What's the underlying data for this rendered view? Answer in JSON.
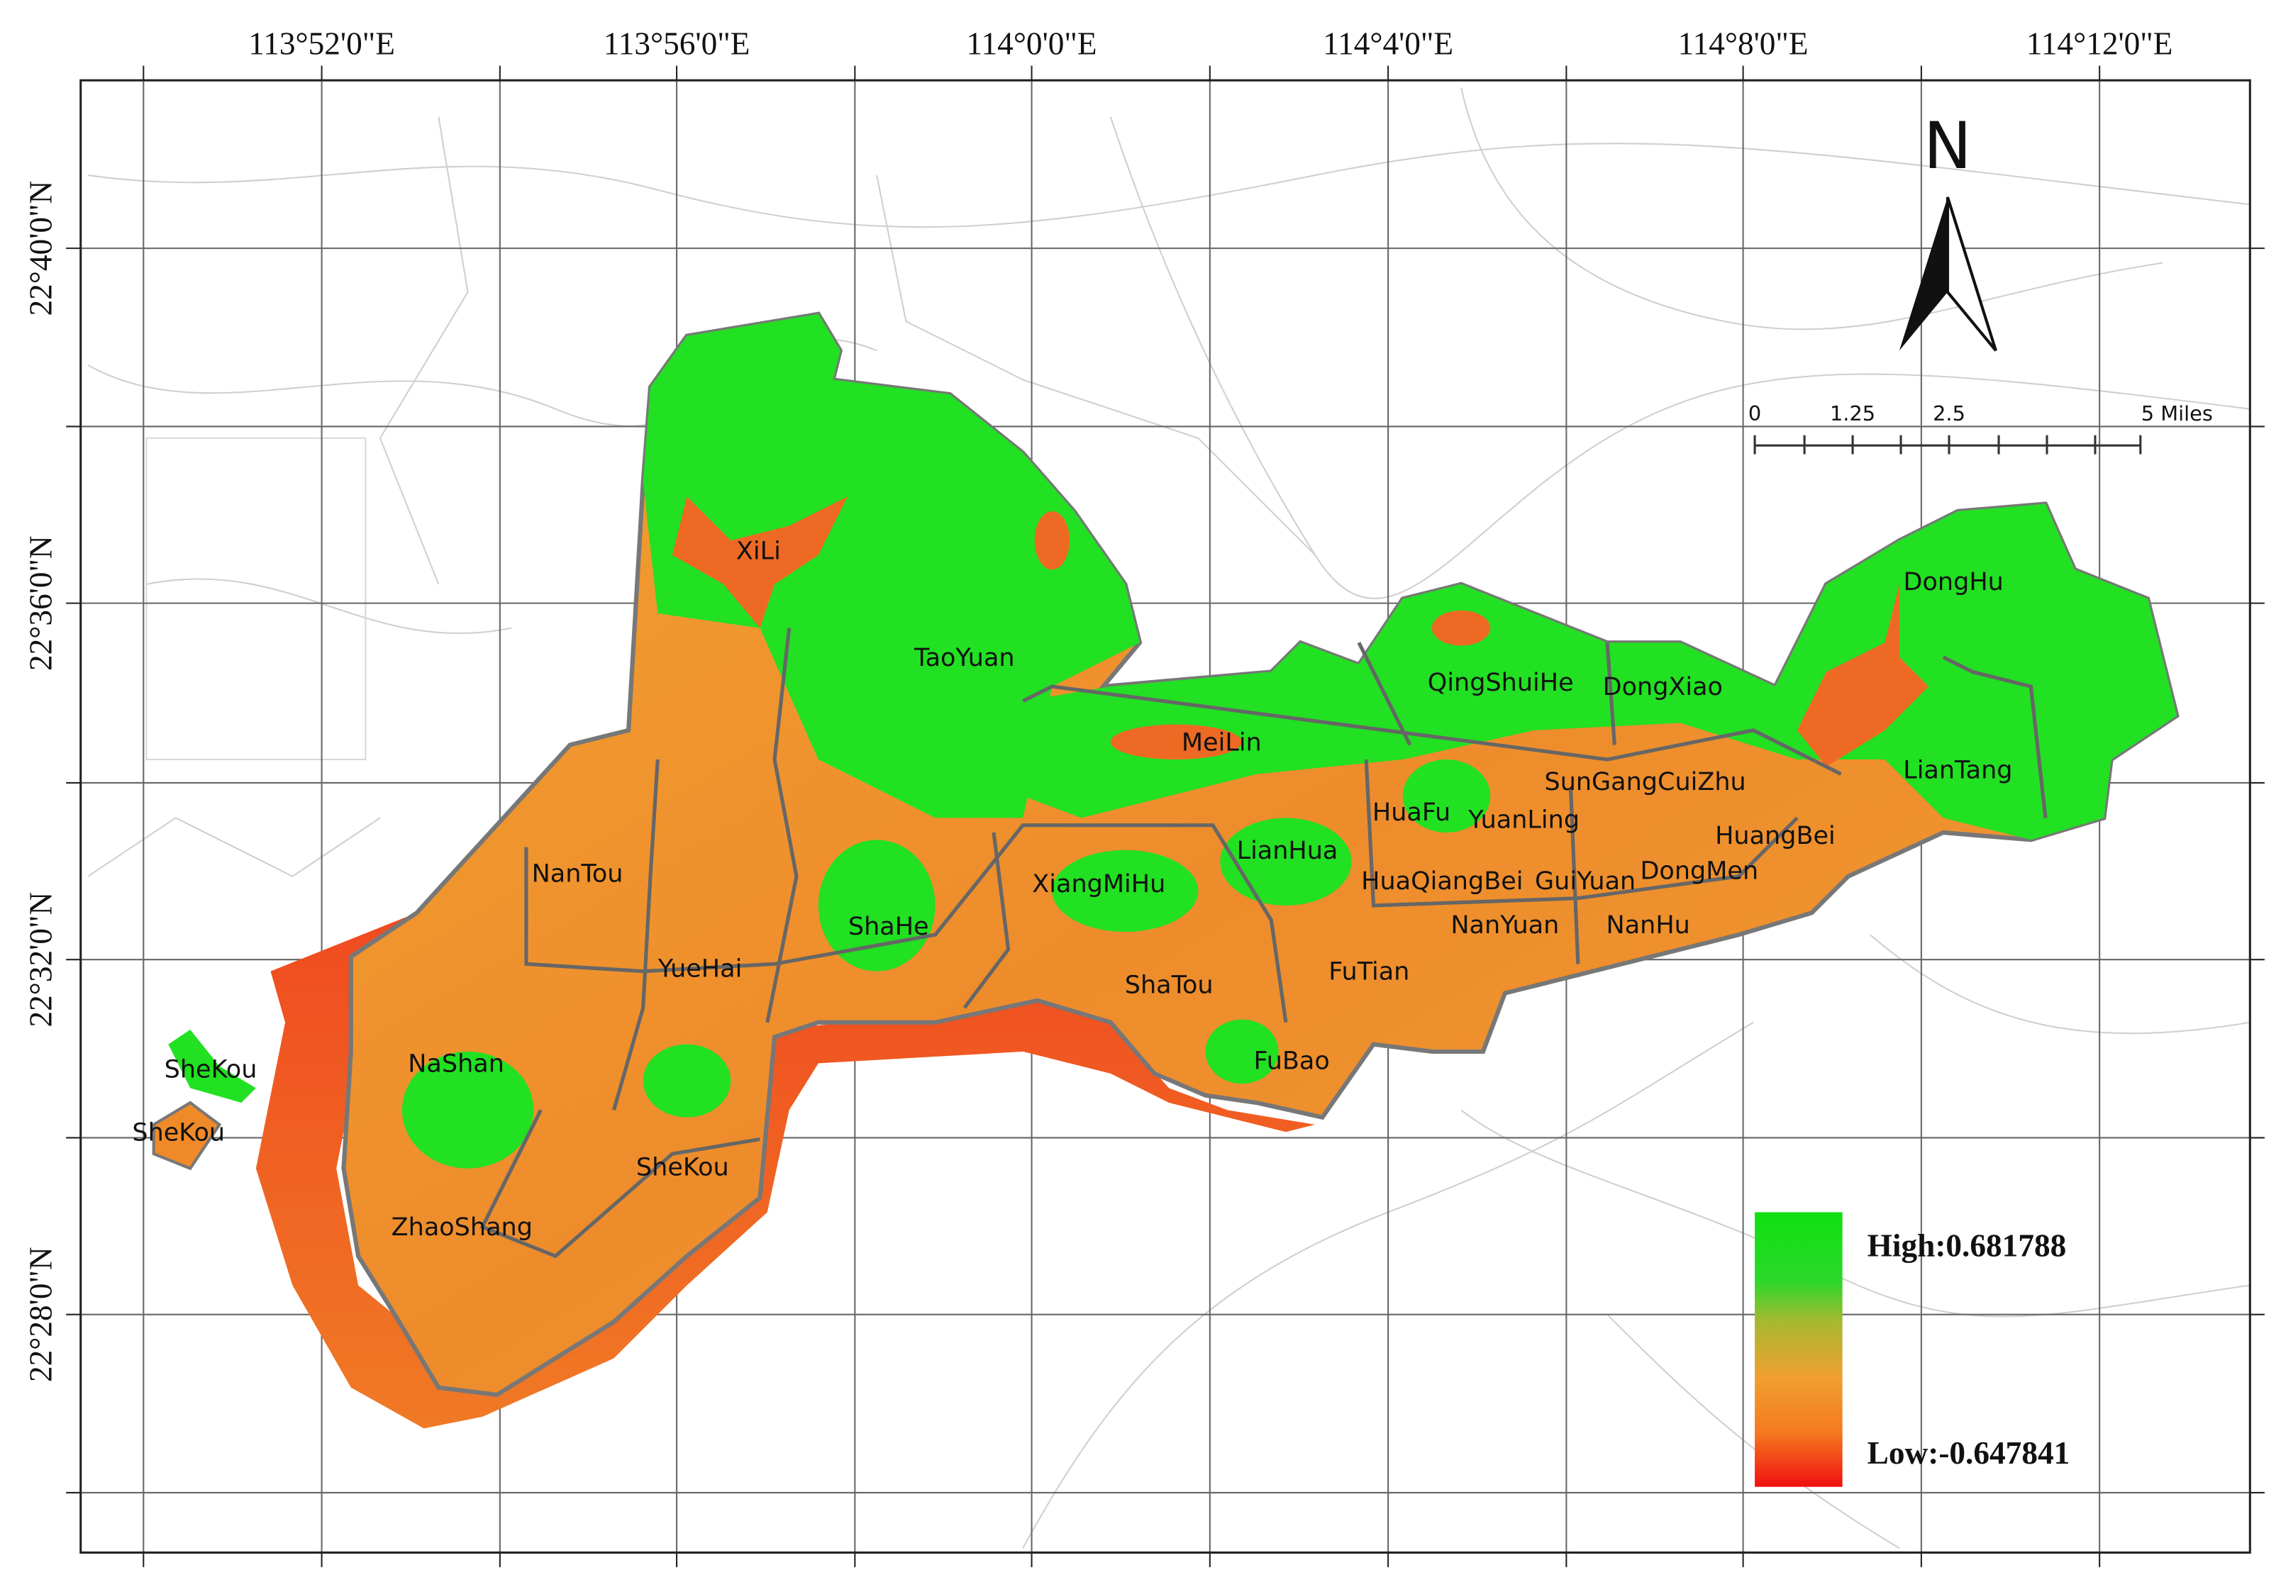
{
  "map": {
    "longitude_labels": [
      "113°52'0\"E",
      "113°56'0\"E",
      "114°0'0\"E",
      "114°4'0\"E",
      "114°8'0\"E",
      "114°12'0\"E"
    ],
    "latitude_labels": [
      "22°40'0\"N",
      "22°36'0\"N",
      "22°32'0\"N",
      "22°28'0\"N"
    ],
    "north": "N",
    "scale_bar": [
      "0",
      "1.25",
      "2.5",
      "5 Miles"
    ],
    "legend": {
      "high": "High:0.681788",
      "low": "Low:-0.647841"
    },
    "districts": [
      "XiLi",
      "TaoYuan",
      "MeiLin",
      "QingShuiHe",
      "DongXiao",
      "DongHu",
      "LianTang",
      "SunGangCuiZhu",
      "HuaFu",
      "YuanLing",
      "LianHua",
      "HuangBei",
      "XiangMiHu",
      "HuaQiangBei",
      "GuiYuan",
      "DongMen",
      "NanTou",
      "ShaHe",
      "NanYuan",
      "NanHu",
      "YueHai",
      "FuTian",
      "ShaTou",
      "NaShan",
      "SheKou",
      "FuBao",
      "SheKou",
      "SheKou",
      "ZhaoShang"
    ]
  }
}
